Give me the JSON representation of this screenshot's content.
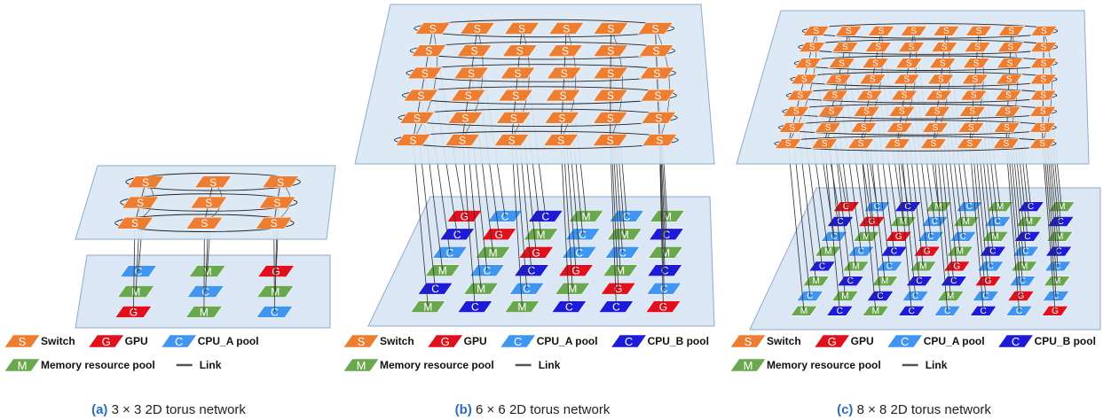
{
  "panels": [
    {
      "switches": [
        [
          "S",
          "S",
          "S"
        ],
        [
          "S",
          "S",
          "S"
        ],
        [
          "S",
          "S",
          "S"
        ]
      ],
      "resources": [
        [
          {
            "label": "C",
            "color": "#3f95ef"
          },
          {
            "label": "M",
            "color": "#6aa84f"
          },
          {
            "label": "G",
            "color": "#e0101c"
          }
        ],
        [
          {
            "label": "M",
            "color": "#6aa84f"
          },
          {
            "label": "C",
            "color": "#3f95ef"
          },
          {
            "label": "M",
            "color": "#6aa84f"
          }
        ],
        [
          {
            "label": "G",
            "color": "#e0101c"
          },
          {
            "label": "M",
            "color": "#6aa84f"
          },
          {
            "label": "C",
            "color": "#3f95ef"
          }
        ]
      ],
      "legend": [
        [
          {
            "icon": "S",
            "label": "Switch",
            "color": "#ed7d31"
          },
          {
            "icon": "G",
            "label": "GPU",
            "color": "#e0101c"
          },
          {
            "icon": "C",
            "label": "CPU_A pool",
            "color": "#3f95ef"
          }
        ],
        [
          {
            "icon": "M",
            "label": "Memory resource pool",
            "color": "#6aa84f"
          },
          {
            "label": "Link",
            "color": "#555555"
          }
        ]
      ],
      "caption": {
        "tag": "(a)",
        "text": "3 × 3 2D torus network"
      }
    },
    {
      "switches": [
        [
          "S",
          "S",
          "S",
          "S",
          "S",
          "S"
        ],
        [
          "S",
          "S",
          "S",
          "S",
          "S",
          "S"
        ],
        [
          "S",
          "S",
          "S",
          "S",
          "S",
          "S"
        ],
        [
          "S",
          "S",
          "S",
          "S",
          "S",
          "S"
        ],
        [
          "S",
          "S",
          "S",
          "S",
          "S",
          "S"
        ],
        [
          "S",
          "S",
          "S",
          "S",
          "S",
          "S"
        ]
      ],
      "resources": [
        [
          {
            "label": "G",
            "color": "#e0101c"
          },
          {
            "label": "C",
            "color": "#3f95ef"
          },
          {
            "label": "C",
            "color": "#1c1cd8"
          },
          {
            "label": "M",
            "color": "#6aa84f"
          },
          {
            "label": "C",
            "color": "#3f95ef"
          },
          {
            "label": "M",
            "color": "#6aa84f"
          }
        ],
        [
          {
            "label": "C",
            "color": "#1c1cd8"
          },
          {
            "label": "G",
            "color": "#e0101c"
          },
          {
            "label": "M",
            "color": "#6aa84f"
          },
          {
            "label": "C",
            "color": "#3f95ef"
          },
          {
            "label": "M",
            "color": "#6aa84f"
          },
          {
            "label": "C",
            "color": "#1c1cd8"
          }
        ],
        [
          {
            "label": "C",
            "color": "#3f95ef"
          },
          {
            "label": "M",
            "color": "#6aa84f"
          },
          {
            "label": "G",
            "color": "#e0101c"
          },
          {
            "label": "C",
            "color": "#3f95ef"
          },
          {
            "label": "C",
            "color": "#3f95ef"
          },
          {
            "label": "M",
            "color": "#6aa84f"
          }
        ],
        [
          {
            "label": "M",
            "color": "#6aa84f"
          },
          {
            "label": "C",
            "color": "#3f95ef"
          },
          {
            "label": "C",
            "color": "#1c1cd8"
          },
          {
            "label": "G",
            "color": "#e0101c"
          },
          {
            "label": "M",
            "color": "#6aa84f"
          },
          {
            "label": "C",
            "color": "#1c1cd8"
          }
        ],
        [
          {
            "label": "C",
            "color": "#1c1cd8"
          },
          {
            "label": "M",
            "color": "#6aa84f"
          },
          {
            "label": "C",
            "color": "#3f95ef"
          },
          {
            "label": "M",
            "color": "#6aa84f"
          },
          {
            "label": "G",
            "color": "#e0101c"
          },
          {
            "label": "C",
            "color": "#3f95ef"
          }
        ],
        [
          {
            "label": "M",
            "color": "#6aa84f"
          },
          {
            "label": "C",
            "color": "#1c1cd8"
          },
          {
            "label": "M",
            "color": "#6aa84f"
          },
          {
            "label": "C",
            "color": "#1c1cd8"
          },
          {
            "label": "C",
            "color": "#1c1cd8"
          },
          {
            "label": "G",
            "color": "#e0101c"
          }
        ]
      ],
      "legend": [
        [
          {
            "icon": "S",
            "label": "Switch",
            "color": "#ed7d31"
          },
          {
            "icon": "G",
            "label": "GPU",
            "color": "#e0101c"
          },
          {
            "icon": "C",
            "label": "CPU_A pool",
            "color": "#3f95ef"
          },
          {
            "icon": "C",
            "label": "CPU_B pool",
            "color": "#1c1cd8"
          }
        ],
        [
          {
            "icon": "M",
            "label": "Memory resource pool",
            "color": "#6aa84f"
          },
          {
            "label": "Link",
            "color": "#555555"
          }
        ]
      ],
      "caption": {
        "tag": "(b)",
        "text": "6 × 6 2D torus network"
      }
    },
    {
      "switches": [
        [
          "S",
          "S",
          "S",
          "S",
          "S",
          "S",
          "S",
          "S"
        ],
        [
          "S",
          "S",
          "S",
          "S",
          "S",
          "S",
          "S",
          "S"
        ],
        [
          "S",
          "S",
          "S",
          "S",
          "S",
          "S",
          "S",
          "S"
        ],
        [
          "S",
          "S",
          "S",
          "S",
          "S",
          "S",
          "S",
          "S"
        ],
        [
          "S",
          "S",
          "S",
          "S",
          "S",
          "S",
          "S",
          "S"
        ],
        [
          "S",
          "S",
          "S",
          "S",
          "S",
          "S",
          "S",
          "S"
        ],
        [
          "S",
          "S",
          "S",
          "S",
          "S",
          "S",
          "S",
          "S"
        ],
        [
          "S",
          "S",
          "S",
          "S",
          "S",
          "S",
          "S",
          "S"
        ]
      ],
      "resources": [
        [
          {
            "label": "G",
            "color": "#e0101c"
          },
          {
            "label": "C",
            "color": "#3f95ef"
          },
          {
            "label": "C",
            "color": "#1c1cd8"
          },
          {
            "label": "M",
            "color": "#6aa84f"
          },
          {
            "label": "C",
            "color": "#3f95ef"
          },
          {
            "label": "M",
            "color": "#6aa84f"
          },
          {
            "label": "C",
            "color": "#1c1cd8"
          },
          {
            "label": "M",
            "color": "#6aa84f"
          }
        ],
        [
          {
            "label": "C",
            "color": "#1c1cd8"
          },
          {
            "label": "G",
            "color": "#e0101c"
          },
          {
            "label": "M",
            "color": "#6aa84f"
          },
          {
            "label": "C",
            "color": "#3f95ef"
          },
          {
            "label": "M",
            "color": "#6aa84f"
          },
          {
            "label": "C",
            "color": "#3f95ef"
          },
          {
            "label": "M",
            "color": "#6aa84f"
          },
          {
            "label": "C",
            "color": "#1c1cd8"
          }
        ],
        [
          {
            "label": "C",
            "color": "#3f95ef"
          },
          {
            "label": "M",
            "color": "#6aa84f"
          },
          {
            "label": "G",
            "color": "#e0101c"
          },
          {
            "label": "C",
            "color": "#3f95ef"
          },
          {
            "label": "C",
            "color": "#3f95ef"
          },
          {
            "label": "M",
            "color": "#6aa84f"
          },
          {
            "label": "C",
            "color": "#1c1cd8"
          },
          {
            "label": "M",
            "color": "#6aa84f"
          }
        ],
        [
          {
            "label": "M",
            "color": "#6aa84f"
          },
          {
            "label": "C",
            "color": "#3f95ef"
          },
          {
            "label": "C",
            "color": "#1c1cd8"
          },
          {
            "label": "G",
            "color": "#e0101c"
          },
          {
            "label": "M",
            "color": "#6aa84f"
          },
          {
            "label": "C",
            "color": "#1c1cd8"
          },
          {
            "label": "C",
            "color": "#3f95ef"
          },
          {
            "label": "C",
            "color": "#1c1cd8"
          }
        ],
        [
          {
            "label": "C",
            "color": "#1c1cd8"
          },
          {
            "label": "M",
            "color": "#6aa84f"
          },
          {
            "label": "C",
            "color": "#3f95ef"
          },
          {
            "label": "M",
            "color": "#6aa84f"
          },
          {
            "label": "G",
            "color": "#e0101c"
          },
          {
            "label": "C",
            "color": "#3f95ef"
          },
          {
            "label": "M",
            "color": "#6aa84f"
          },
          {
            "label": "C",
            "color": "#3f95ef"
          }
        ],
        [
          {
            "label": "M",
            "color": "#6aa84f"
          },
          {
            "label": "C",
            "color": "#1c1cd8"
          },
          {
            "label": "M",
            "color": "#6aa84f"
          },
          {
            "label": "C",
            "color": "#1c1cd8"
          },
          {
            "label": "C",
            "color": "#1c1cd8"
          },
          {
            "label": "G",
            "color": "#e0101c"
          },
          {
            "label": "C",
            "color": "#3f95ef"
          },
          {
            "label": "M",
            "color": "#6aa84f"
          }
        ],
        [
          {
            "label": "C",
            "color": "#3f95ef"
          },
          {
            "label": "M",
            "color": "#6aa84f"
          },
          {
            "label": "C",
            "color": "#1c1cd8"
          },
          {
            "label": "C",
            "color": "#3f95ef"
          },
          {
            "label": "M",
            "color": "#6aa84f"
          },
          {
            "label": "C",
            "color": "#3f95ef"
          },
          {
            "label": "G",
            "color": "#e0101c"
          },
          {
            "label": "C",
            "color": "#3f95ef"
          }
        ],
        [
          {
            "label": "M",
            "color": "#6aa84f"
          },
          {
            "label": "C",
            "color": "#1c1cd8"
          },
          {
            "label": "M",
            "color": "#6aa84f"
          },
          {
            "label": "C",
            "color": "#1c1cd8"
          },
          {
            "label": "C",
            "color": "#3f95ef"
          },
          {
            "label": "C",
            "color": "#1c1cd8"
          },
          {
            "label": "C",
            "color": "#3f95ef"
          },
          {
            "label": "G",
            "color": "#e0101c"
          }
        ]
      ],
      "legend": [
        [
          {
            "icon": "S",
            "label": "Switch",
            "color": "#ed7d31"
          },
          {
            "icon": "G",
            "label": "GPU",
            "color": "#e0101c"
          },
          {
            "icon": "C",
            "label": "CPU_A pool",
            "color": "#3f95ef"
          },
          {
            "icon": "C",
            "label": "CPU_B pool",
            "color": "#1c1cd8"
          }
        ],
        [
          {
            "icon": "M",
            "label": "Memory resource pool",
            "color": "#6aa84f"
          },
          {
            "label": "Link",
            "color": "#555555"
          }
        ]
      ],
      "caption": {
        "tag": "(c)",
        "text": "8 × 8 2D torus network"
      }
    }
  ]
}
